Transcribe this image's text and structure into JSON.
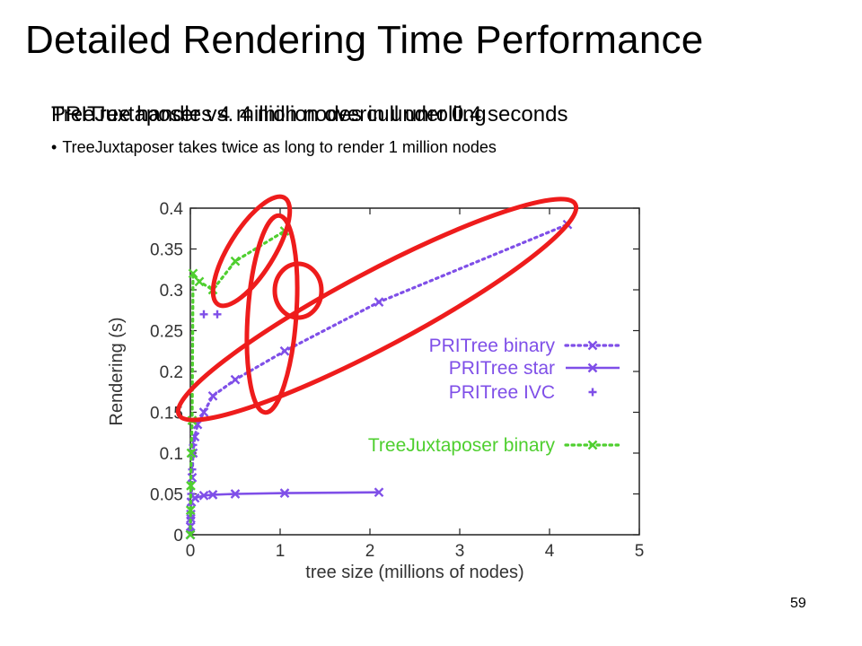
{
  "slide": {
    "title": "Detailed Rendering Time Performance",
    "overlapping_lines": [
      "PRITree handles 4 million nodes in under 0.4 seconds",
      "TreeJuxtaposer vs. 4 million overcull unrolling"
    ],
    "bullet_text": "TreeJuxtaposer takes twice as long to render 1 million nodes",
    "page_number": "59"
  },
  "colors": {
    "purple": "#7f4fe8",
    "green": "#4fcf2f",
    "highlight": "#ee1c1c"
  },
  "chart_data": {
    "type": "line",
    "xlabel": "tree size (millions of nodes)",
    "ylabel": "Rendering (s)",
    "xlim": [
      0,
      5
    ],
    "ylim": [
      0,
      0.4
    ],
    "x_ticks": [
      "0",
      "1",
      "2",
      "3",
      "4",
      "5"
    ],
    "y_ticks": [
      "0",
      "0.05",
      "0.1",
      "0.15",
      "0.2",
      "0.25",
      "0.3",
      "0.35",
      "0.4"
    ],
    "grid": false,
    "legend_position": "right",
    "series": [
      {
        "name": "PRITree binary",
        "style": "dotted",
        "marker": "x",
        "color": "purple",
        "points": [
          [
            0,
            0
          ],
          [
            0.002,
            0.01
          ],
          [
            0.005,
            0.02
          ],
          [
            0.01,
            0.04
          ],
          [
            0.02,
            0.07
          ],
          [
            0.03,
            0.1
          ],
          [
            0.05,
            0.12
          ],
          [
            0.08,
            0.135
          ],
          [
            0.15,
            0.15
          ],
          [
            0.25,
            0.17
          ],
          [
            0.5,
            0.19
          ],
          [
            1.05,
            0.225
          ],
          [
            2.1,
            0.285
          ],
          [
            4.2,
            0.38
          ]
        ]
      },
      {
        "name": "PRITree star",
        "style": "solid",
        "marker": "x",
        "color": "purple",
        "points": [
          [
            0,
            0
          ],
          [
            0.002,
            0.01
          ],
          [
            0.005,
            0.025
          ],
          [
            0.01,
            0.04
          ],
          [
            0.05,
            0.045
          ],
          [
            0.15,
            0.048
          ],
          [
            0.25,
            0.049
          ],
          [
            0.5,
            0.05
          ],
          [
            1.05,
            0.051
          ],
          [
            2.1,
            0.052
          ]
        ]
      },
      {
        "name": "PRITree IVC",
        "style": "none",
        "marker": "+",
        "color": "purple",
        "points": [
          [
            0,
            0.005
          ],
          [
            0.003,
            0.02
          ],
          [
            0.01,
            0.05
          ],
          [
            0.02,
            0.08
          ],
          [
            0.03,
            0.11
          ],
          [
            0.15,
            0.27
          ],
          [
            0.3,
            0.27
          ]
        ]
      },
      {
        "name": "TreeJuxtaposer binary",
        "style": "dotted",
        "marker": "x",
        "color": "green",
        "points": [
          [
            0,
            0
          ],
          [
            0.002,
            0.03
          ],
          [
            0.005,
            0.06
          ],
          [
            0.01,
            0.1
          ],
          [
            0.02,
            0.14
          ],
          [
            0.03,
            0.32
          ],
          [
            0.1,
            0.31
          ],
          [
            0.25,
            0.3
          ],
          [
            0.5,
            0.335
          ],
          [
            1.05,
            0.372
          ]
        ]
      }
    ],
    "highlight_ellipses": 4
  }
}
